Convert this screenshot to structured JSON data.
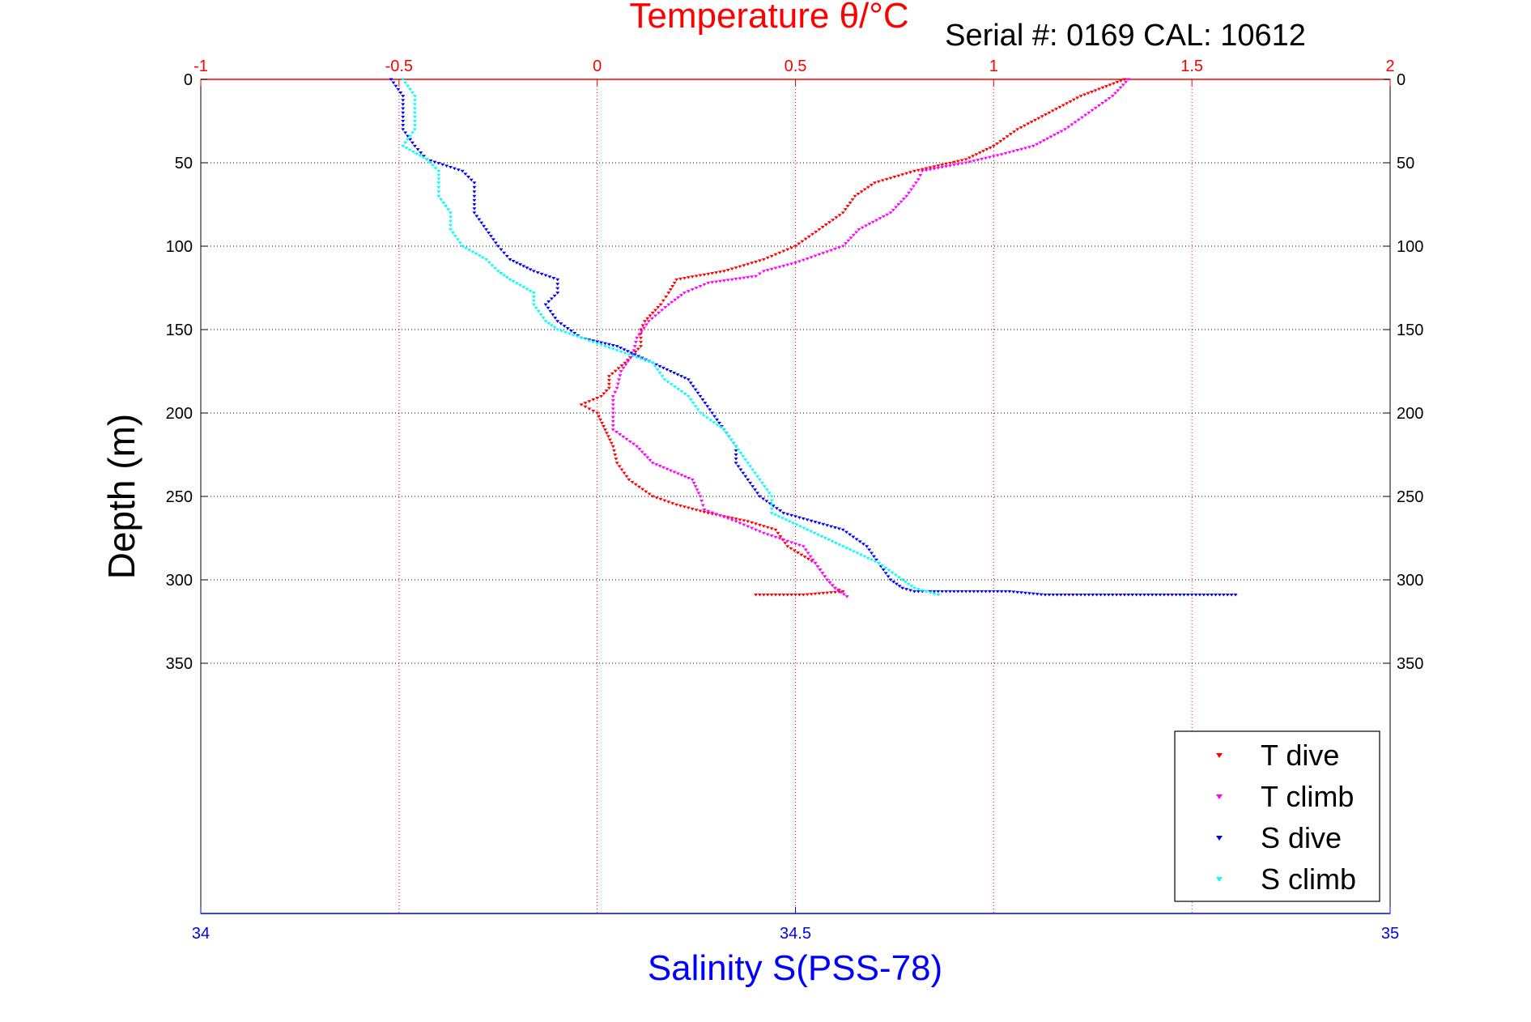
{
  "chart_data": {
    "type": "scatter",
    "title": "Temperature θ/°C",
    "subtitle": "Serial #: 0169 CAL: 10612",
    "xlabel": "Salinity S(PSS-78)",
    "ylabel": "Depth (m)",
    "temp_axis": {
      "range": [
        -1,
        2
      ],
      "ticks": [
        -1,
        -0.5,
        0,
        0.5,
        1,
        1.5,
        2
      ],
      "tick_labels": [
        "-1",
        "-0.5",
        "0",
        "0.5",
        "1",
        "1.5",
        "2"
      ]
    },
    "sal_axis": {
      "range": [
        34,
        35
      ],
      "ticks": [
        34,
        34.5,
        35
      ],
      "tick_labels": [
        "34",
        "34.5",
        "35"
      ]
    },
    "depth_axis": {
      "range": [
        0,
        500
      ],
      "reversed": true,
      "ticks": [
        0,
        50,
        100,
        150,
        200,
        250,
        300,
        350
      ],
      "tick_labels": [
        "0",
        "50",
        "100",
        "150",
        "200",
        "250",
        "300",
        "350"
      ]
    },
    "grid": true,
    "legend_position": "bottom-right",
    "series": [
      {
        "name": "T dive",
        "axis": "temperature",
        "color": "#ff0000",
        "profile": [
          [
            0,
            1.33
          ],
          [
            10,
            1.22
          ],
          [
            20,
            1.14
          ],
          [
            30,
            1.06
          ],
          [
            40,
            1.0
          ],
          [
            48,
            0.93
          ],
          [
            55,
            0.8
          ],
          [
            62,
            0.7
          ],
          [
            70,
            0.65
          ],
          [
            80,
            0.62
          ],
          [
            90,
            0.56
          ],
          [
            100,
            0.5
          ],
          [
            108,
            0.42
          ],
          [
            115,
            0.32
          ],
          [
            120,
            0.2
          ],
          [
            128,
            0.18
          ],
          [
            135,
            0.16
          ],
          [
            145,
            0.12
          ],
          [
            150,
            0.11
          ],
          [
            160,
            0.11
          ],
          [
            170,
            0.07
          ],
          [
            178,
            0.03
          ],
          [
            185,
            0.03
          ],
          [
            190,
            0.01
          ],
          [
            195,
            -0.04
          ],
          [
            200,
            0.0
          ],
          [
            210,
            0.02
          ],
          [
            220,
            0.04
          ],
          [
            230,
            0.05
          ],
          [
            240,
            0.08
          ],
          [
            250,
            0.14
          ],
          [
            255,
            0.2
          ],
          [
            260,
            0.28
          ],
          [
            265,
            0.38
          ],
          [
            270,
            0.45
          ],
          [
            280,
            0.48
          ],
          [
            290,
            0.55
          ],
          [
            300,
            0.58
          ],
          [
            305,
            0.6
          ],
          [
            307,
            0.62
          ],
          [
            309,
            0.52
          ],
          [
            309,
            0.4
          ]
        ]
      },
      {
        "name": "T climb",
        "axis": "temperature",
        "color": "#ff00ff",
        "profile": [
          [
            0,
            1.34
          ],
          [
            10,
            1.3
          ],
          [
            20,
            1.24
          ],
          [
            30,
            1.18
          ],
          [
            40,
            1.1
          ],
          [
            45,
            1.02
          ],
          [
            50,
            0.93
          ],
          [
            55,
            0.82
          ],
          [
            60,
            0.81
          ],
          [
            70,
            0.78
          ],
          [
            80,
            0.74
          ],
          [
            90,
            0.66
          ],
          [
            100,
            0.62
          ],
          [
            110,
            0.5
          ],
          [
            115,
            0.42
          ],
          [
            118,
            0.4
          ],
          [
            122,
            0.28
          ],
          [
            128,
            0.22
          ],
          [
            135,
            0.18
          ],
          [
            145,
            0.13
          ],
          [
            155,
            0.1
          ],
          [
            165,
            0.09
          ],
          [
            175,
            0.06
          ],
          [
            185,
            0.05
          ],
          [
            190,
            0.04
          ],
          [
            200,
            0.04
          ],
          [
            210,
            0.04
          ],
          [
            220,
            0.1
          ],
          [
            230,
            0.14
          ],
          [
            240,
            0.24
          ],
          [
            250,
            0.26
          ],
          [
            258,
            0.27
          ],
          [
            265,
            0.35
          ],
          [
            272,
            0.42
          ],
          [
            280,
            0.52
          ],
          [
            290,
            0.55
          ],
          [
            300,
            0.58
          ],
          [
            305,
            0.6
          ],
          [
            310,
            0.63
          ]
        ]
      },
      {
        "name": "S dive",
        "axis": "salinity",
        "color": "#0000ff",
        "profile": [
          [
            0,
            34.16
          ],
          [
            10,
            34.17
          ],
          [
            20,
            34.17
          ],
          [
            30,
            34.17
          ],
          [
            40,
            34.18
          ],
          [
            48,
            34.19
          ],
          [
            55,
            34.22
          ],
          [
            62,
            34.23
          ],
          [
            70,
            34.23
          ],
          [
            80,
            34.23
          ],
          [
            90,
            34.24
          ],
          [
            100,
            34.25
          ],
          [
            108,
            34.26
          ],
          [
            115,
            34.28
          ],
          [
            120,
            34.3
          ],
          [
            128,
            34.3
          ],
          [
            135,
            34.29
          ],
          [
            145,
            34.3
          ],
          [
            155,
            34.32
          ],
          [
            160,
            34.35
          ],
          [
            170,
            34.38
          ],
          [
            180,
            34.41
          ],
          [
            190,
            34.42
          ],
          [
            200,
            34.43
          ],
          [
            210,
            34.44
          ],
          [
            220,
            34.45
          ],
          [
            230,
            34.45
          ],
          [
            240,
            34.46
          ],
          [
            250,
            34.47
          ],
          [
            260,
            34.49
          ],
          [
            270,
            34.54
          ],
          [
            280,
            34.56
          ],
          [
            290,
            34.57
          ],
          [
            300,
            34.58
          ],
          [
            305,
            34.59
          ],
          [
            307,
            34.6
          ],
          [
            307,
            34.64
          ],
          [
            307,
            34.68
          ],
          [
            309,
            34.71
          ],
          [
            309,
            34.78
          ],
          [
            309,
            34.8
          ],
          [
            309,
            34.84
          ],
          [
            309,
            34.86
          ],
          [
            309,
            34.87
          ]
        ]
      },
      {
        "name": "S climb",
        "axis": "salinity",
        "color": "#00ffff",
        "profile": [
          [
            0,
            34.17
          ],
          [
            10,
            34.18
          ],
          [
            20,
            34.18
          ],
          [
            30,
            34.18
          ],
          [
            40,
            34.17
          ],
          [
            48,
            34.19
          ],
          [
            55,
            34.2
          ],
          [
            62,
            34.2
          ],
          [
            70,
            34.2
          ],
          [
            80,
            34.21
          ],
          [
            90,
            34.21
          ],
          [
            100,
            34.22
          ],
          [
            108,
            34.24
          ],
          [
            115,
            34.25
          ],
          [
            120,
            34.26
          ],
          [
            128,
            34.28
          ],
          [
            135,
            34.28
          ],
          [
            145,
            34.29
          ],
          [
            150,
            34.3
          ],
          [
            160,
            34.34
          ],
          [
            170,
            34.38
          ],
          [
            180,
            34.39
          ],
          [
            190,
            34.41
          ],
          [
            200,
            34.42
          ],
          [
            210,
            34.44
          ],
          [
            220,
            34.45
          ],
          [
            230,
            34.46
          ],
          [
            240,
            34.47
          ],
          [
            250,
            34.48
          ],
          [
            260,
            34.48
          ],
          [
            270,
            34.51
          ],
          [
            280,
            34.54
          ],
          [
            290,
            34.57
          ],
          [
            300,
            34.59
          ],
          [
            305,
            34.6
          ],
          [
            307,
            34.61
          ],
          [
            309,
            34.62
          ]
        ]
      }
    ]
  }
}
